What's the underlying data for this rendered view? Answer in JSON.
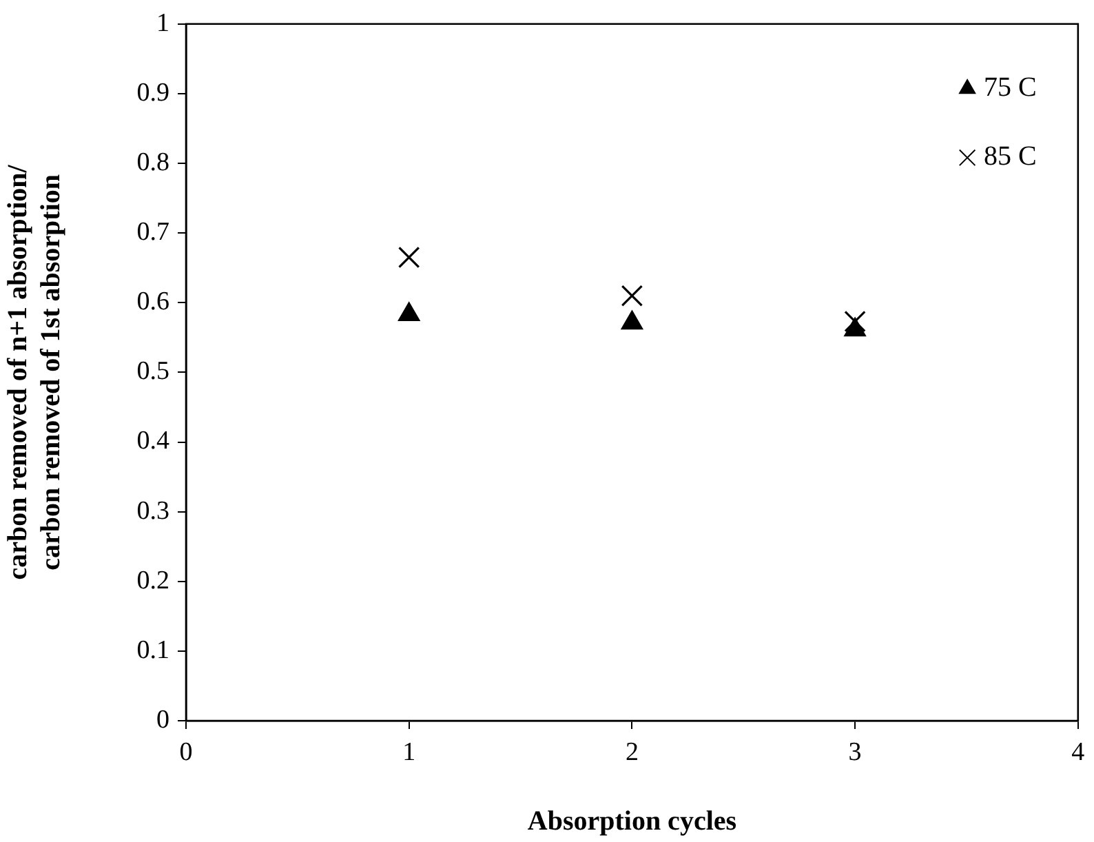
{
  "chart_data": {
    "type": "scatter",
    "xlabel": "Absorption cycles",
    "ylabel": "carbon removed of n+1 absorption/\ncarbon removed of 1st absorption",
    "x": [
      1,
      2,
      3
    ],
    "series": [
      {
        "name": "75 C",
        "color": "#000000",
        "marker": "triangle",
        "values": [
          0.583,
          0.571,
          0.561
        ]
      },
      {
        "name": "85 C",
        "color": "#000000",
        "marker": "cross",
        "values": [
          0.665,
          0.61,
          0.573
        ]
      }
    ],
    "xlim": [
      0,
      4
    ],
    "xticks": [
      0,
      1,
      2,
      3,
      4
    ],
    "ylim": [
      0,
      1
    ],
    "yticks": [
      0,
      0.1,
      0.2,
      0.3,
      0.4,
      0.5,
      0.6,
      0.7,
      0.8,
      0.9,
      1
    ],
    "grid": false,
    "legend": "top right"
  }
}
